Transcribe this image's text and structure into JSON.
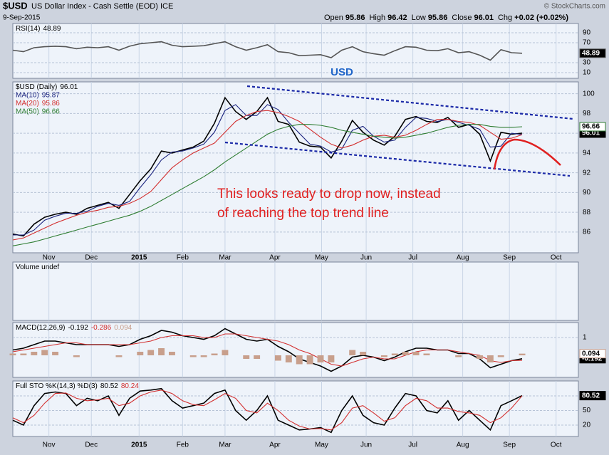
{
  "header": {
    "symbol": "$USD",
    "name": "US Dollar Index - Cash Settle (EOD) ICE",
    "date": "9-Sep-2015",
    "copyright": "© StockCharts.com",
    "quote": [
      {
        "label": "Open",
        "value": 95.86
      },
      {
        "label": "High",
        "value": 96.42
      },
      {
        "label": "Low",
        "value": 95.86
      },
      {
        "label": "Close",
        "value": 96.01
      },
      {
        "label": "Chg",
        "value": "+0.02 (+0.02%)"
      }
    ]
  },
  "chart_data": [
    {
      "type": "line",
      "title": "RSI(14)",
      "x": [
        0,
        1,
        2,
        3,
        4,
        5,
        6,
        7,
        8,
        9,
        10,
        11,
        12,
        13,
        14,
        15,
        16,
        17,
        18,
        19,
        20,
        21,
        22,
        23,
        24,
        25,
        26,
        27,
        28,
        29,
        30,
        31,
        32,
        33,
        34,
        35,
        36,
        37,
        38,
        39,
        40,
        41,
        42,
        43,
        44,
        45,
        46,
        47,
        48
      ],
      "xlim": [
        0,
        53.3
      ],
      "ylim": [
        -1.4,
        108.6
      ],
      "yticks": [
        90,
        70,
        30,
        10
      ],
      "grid": true,
      "series": [
        {
          "name": "RSI",
          "color": "#555555",
          "last_value_box": true,
          "values": [
            55,
            52,
            60,
            62,
            63,
            62,
            58,
            61,
            60,
            62,
            55,
            63,
            68,
            70,
            72,
            65,
            62,
            63,
            64,
            68,
            72,
            62,
            55,
            60,
            66,
            52,
            50,
            44,
            45,
            46,
            40,
            55,
            62,
            52,
            48,
            45,
            54,
            62,
            61,
            55,
            54,
            58,
            50,
            52,
            45,
            35,
            56,
            50,
            48.89
          ]
        }
      ]
    },
    {
      "type": "line",
      "title": "USD",
      "legend": "list",
      "x": [
        0,
        1,
        2,
        3,
        4,
        5,
        6,
        7,
        8,
        9,
        10,
        11,
        12,
        13,
        14,
        15,
        16,
        17,
        18,
        19,
        20,
        21,
        22,
        23,
        24,
        25,
        26,
        27,
        28,
        29,
        30,
        31,
        32,
        33,
        34,
        35,
        36,
        37,
        38,
        39,
        40,
        41,
        42,
        43,
        44,
        45,
        46,
        47,
        48
      ],
      "xlim": [
        0,
        53.3
      ],
      "ylim": [
        83.9,
        101.2
      ],
      "yticks": [
        100,
        98,
        96,
        94,
        92,
        90,
        88,
        86
      ],
      "grid": true,
      "xticks": [
        {
          "value": 3.4,
          "label": "Nov"
        },
        {
          "value": 7.4,
          "label": "Dec"
        },
        {
          "value": 11.9,
          "label": "2015"
        },
        {
          "value": 16.0,
          "label": "Feb"
        },
        {
          "value": 20.0,
          "label": "Mar"
        },
        {
          "value": 24.7,
          "label": "Apr"
        },
        {
          "value": 29.1,
          "label": "May"
        },
        {
          "value": 33.3,
          "label": "Jun"
        },
        {
          "value": 37.7,
          "label": "Jul"
        },
        {
          "value": 42.4,
          "label": "Aug"
        },
        {
          "value": 46.8,
          "label": "Sep"
        },
        {
          "value": 51.2,
          "label": "Oct"
        }
      ],
      "annotations": [
        "This looks ready to drop now, instead",
        "of reaching the top trend line"
      ],
      "series": [
        {
          "name": "$USD (Daily)",
          "color": "#000000",
          "last_value_box": true,
          "values": [
            85.8,
            85.6,
            86.8,
            87.5,
            87.8,
            88.0,
            87.8,
            88.4,
            88.7,
            89.0,
            88.4,
            89.8,
            91.2,
            92.4,
            94.2,
            94.0,
            94.3,
            94.6,
            95.2,
            97.0,
            99.6,
            98.2,
            97.4,
            98.2,
            99.6,
            97.2,
            96.9,
            95.1,
            94.7,
            94.6,
            93.5,
            95.2,
            97.3,
            96.1,
            95.3,
            94.8,
            95.7,
            97.4,
            97.7,
            97.2,
            97.1,
            97.6,
            96.6,
            96.9,
            95.9,
            93.2,
            96.1,
            95.9,
            96.01
          ]
        },
        {
          "name": "MA(10)",
          "color": "#1a237e",
          "values": [
            85.7,
            85.7,
            86.2,
            87.2,
            87.6,
            87.9,
            87.9,
            88.1,
            88.6,
            88.9,
            88.7,
            89.1,
            90.5,
            91.8,
            93.3,
            94.1,
            94.2,
            94.5,
            94.9,
            96.1,
            98.3,
            98.9,
            97.8,
            97.8,
            98.9,
            98.4,
            97.1,
            96.0,
            94.9,
            94.7,
            94.1,
            94.4,
            96.3,
            96.7,
            95.7,
            95.1,
            95.3,
            96.6,
            97.6,
            97.5,
            97.2,
            97.4,
            97.1,
            96.8,
            96.4,
            94.6,
            94.7,
            96.0,
            95.87
          ]
        },
        {
          "name": "MA(20)",
          "color": "#d32f2f",
          "values": [
            85.2,
            85.4,
            85.9,
            86.4,
            86.9,
            87.3,
            87.7,
            88.0,
            88.2,
            88.5,
            88.6,
            88.9,
            89.4,
            90.1,
            91.3,
            92.5,
            93.3,
            94.0,
            94.5,
            95.0,
            96.1,
            97.2,
            97.8,
            98.2,
            98.3,
            98.1,
            97.7,
            97.2,
            96.4,
            95.6,
            94.9,
            94.5,
            94.8,
            95.3,
            95.7,
            95.8,
            95.6,
            95.8,
            96.3,
            96.9,
            97.4,
            97.4,
            97.2,
            97.1,
            96.8,
            96.1,
            95.4,
            95.5,
            95.86
          ]
        },
        {
          "name": "MA(50)",
          "color": "#2e7d32",
          "last_value_box": true,
          "values": [
            84.6,
            84.8,
            85.0,
            85.3,
            85.6,
            85.9,
            86.2,
            86.5,
            86.8,
            87.1,
            87.4,
            87.7,
            88.1,
            88.6,
            89.2,
            89.8,
            90.4,
            91.0,
            91.6,
            92.3,
            93.1,
            93.8,
            94.5,
            95.2,
            95.9,
            96.4,
            96.7,
            96.9,
            96.9,
            96.8,
            96.6,
            96.3,
            96.1,
            95.9,
            95.7,
            95.6,
            95.5,
            95.6,
            95.8,
            96.0,
            96.3,
            96.6,
            96.8,
            96.9,
            96.9,
            96.7,
            96.6,
            96.6,
            96.66
          ]
        }
      ]
    },
    {
      "type": "bar",
      "title": "Volume undef"
    },
    {
      "type": "line",
      "title": "MACD(12,26,9)",
      "x": [
        0,
        1,
        2,
        3,
        4,
        5,
        6,
        7,
        8,
        9,
        10,
        11,
        12,
        13,
        14,
        15,
        16,
        17,
        18,
        19,
        20,
        21,
        22,
        23,
        24,
        25,
        26,
        27,
        28,
        29,
        30,
        31,
        32,
        33,
        34,
        35,
        36,
        37,
        38,
        39,
        40,
        41,
        42,
        43,
        44,
        45,
        46,
        47,
        48
      ],
      "xlim": [
        0,
        53.3
      ],
      "ylim": [
        -1.24,
        1.84
      ],
      "yticks": [
        1
      ],
      "grid": true,
      "series": [
        {
          "name": "MACD",
          "color": "#000000",
          "last_value_box": true,
          "values": [
            0.3,
            0.4,
            0.6,
            0.8,
            0.8,
            0.7,
            0.6,
            0.6,
            0.6,
            0.6,
            0.5,
            0.6,
            0.9,
            1.1,
            1.4,
            1.3,
            1.1,
            1.0,
            0.9,
            1.1,
            1.5,
            1.2,
            0.9,
            0.8,
            0.9,
            0.5,
            0.2,
            -0.2,
            -0.4,
            -0.6,
            -0.9,
            -0.6,
            -0.1,
            0.0,
            -0.1,
            -0.3,
            -0.1,
            0.2,
            0.4,
            0.4,
            0.3,
            0.3,
            0.1,
            0.1,
            -0.2,
            -0.7,
            -0.5,
            -0.3,
            -0.192
          ]
        },
        {
          "name": "Signal",
          "color": "#d32f2f",
          "values": [
            0.2,
            0.3,
            0.4,
            0.5,
            0.6,
            0.7,
            0.7,
            0.6,
            0.6,
            0.6,
            0.6,
            0.6,
            0.7,
            0.8,
            1.0,
            1.1,
            1.1,
            1.1,
            1.0,
            1.0,
            1.2,
            1.2,
            1.1,
            1.0,
            0.9,
            0.8,
            0.6,
            0.3,
            0.1,
            -0.2,
            -0.5,
            -0.6,
            -0.4,
            -0.2,
            -0.1,
            -0.2,
            -0.2,
            0.0,
            0.2,
            0.3,
            0.3,
            0.3,
            0.2,
            0.1,
            0.0,
            -0.3,
            -0.4,
            -0.3,
            -0.286
          ]
        },
        {
          "name": "Histogram",
          "type": "bar",
          "color": "#c89f8c",
          "last_value_box": true,
          "values": [
            0.1,
            0.1,
            0.2,
            0.3,
            0.2,
            0,
            -0.1,
            0,
            0,
            0,
            -0.1,
            0,
            0.2,
            0.3,
            0.4,
            0.2,
            0,
            -0.1,
            -0.1,
            0.1,
            0.3,
            0,
            -0.2,
            -0.2,
            0,
            -0.3,
            -0.4,
            -0.5,
            -0.5,
            -0.4,
            -0.4,
            0,
            0.3,
            0.2,
            0,
            -0.1,
            0.1,
            0.2,
            0.2,
            0.1,
            0,
            0,
            -0.1,
            0,
            -0.2,
            -0.4,
            -0.1,
            0,
            0.094
          ]
        }
      ]
    },
    {
      "type": "line",
      "title": "Full STO %K(14,3) %D(3)",
      "x": [
        0,
        1,
        2,
        3,
        4,
        5,
        6,
        7,
        8,
        9,
        10,
        11,
        12,
        13,
        14,
        15,
        16,
        17,
        18,
        19,
        20,
        21,
        22,
        23,
        24,
        25,
        26,
        27,
        28,
        29,
        30,
        31,
        32,
        33,
        34,
        35,
        36,
        37,
        38,
        39,
        40,
        41,
        42,
        43,
        44,
        45,
        46,
        47,
        48
      ],
      "xlim": [
        0,
        53.3
      ],
      "ylim": [
        -3.4,
        110.7
      ],
      "yticks": [
        80,
        50,
        20
      ],
      "grid": true,
      "series": [
        {
          "name": "%K",
          "color": "#000000",
          "last_value_box": true,
          "values": [
            30,
            20,
            60,
            85,
            88,
            85,
            60,
            75,
            70,
            80,
            40,
            75,
            90,
            92,
            95,
            70,
            55,
            60,
            65,
            85,
            92,
            50,
            30,
            50,
            80,
            30,
            20,
            10,
            12,
            15,
            5,
            50,
            80,
            40,
            25,
            20,
            55,
            85,
            80,
            50,
            45,
            70,
            30,
            50,
            30,
            10,
            60,
            70,
            80.52
          ]
        },
        {
          "name": "%D",
          "color": "#d32f2f",
          "values": [
            35,
            25,
            40,
            65,
            85,
            86,
            75,
            70,
            72,
            75,
            60,
            65,
            80,
            88,
            92,
            85,
            70,
            62,
            60,
            72,
            85,
            75,
            50,
            45,
            65,
            50,
            30,
            18,
            12,
            13,
            10,
            25,
            55,
            60,
            45,
            28,
            35,
            60,
            75,
            70,
            55,
            55,
            48,
            45,
            40,
            25,
            35,
            55,
            80.24
          ]
        }
      ]
    }
  ]
}
